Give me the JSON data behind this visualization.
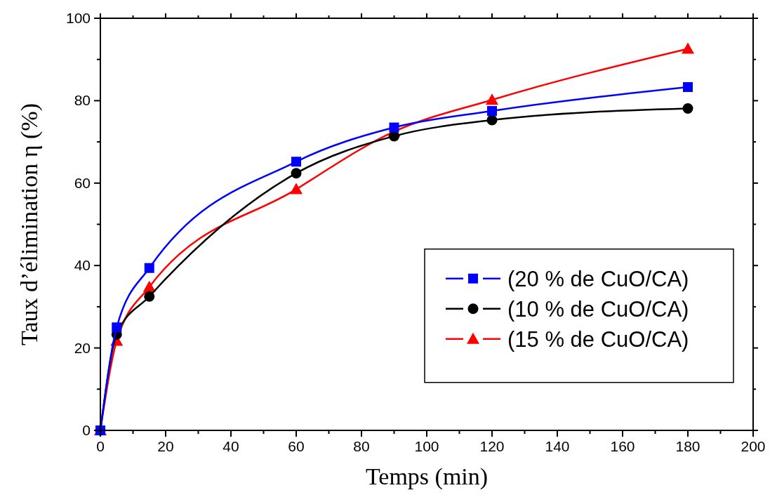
{
  "chart_data": {
    "type": "line",
    "xlabel": "Temps (min)",
    "ylabel": "Taux d’élimination η (%)",
    "x": [
      0,
      5,
      15,
      60,
      90,
      120,
      180
    ],
    "xlim": [
      0,
      200
    ],
    "xticks": [
      0,
      {
        "value": 10,
        "label": null
      },
      20,
      {
        "value": 30,
        "label": null
      },
      40,
      {
        "value": 50,
        "label": null
      },
      60,
      {
        "value": 70,
        "label": null
      },
      80,
      {
        "value": 90,
        "label": null
      },
      100,
      {
        "value": 110,
        "label": null
      },
      120,
      {
        "value": 130,
        "label": null
      },
      140,
      {
        "value": 150,
        "label": null
      },
      160,
      {
        "value": 170,
        "label": null
      },
      180,
      {
        "value": 190,
        "label": null
      },
      200
    ],
    "ylim": [
      0,
      100
    ],
    "yticks": [
      0,
      {
        "value": 10,
        "label": null
      },
      20,
      {
        "value": 30,
        "label": null
      },
      40,
      {
        "value": 50,
        "label": null
      },
      60,
      {
        "value": 70,
        "label": null
      },
      80,
      {
        "value": 90,
        "label": null
      },
      100
    ],
    "grid": false,
    "legend": "right",
    "line_style": "solid",
    "series": [
      {
        "name": "(20 % de CuO/CA)",
        "color": "#0000ff",
        "marker": "square",
        "values": [
          0,
          25,
          39.4,
          65.2,
          73.5,
          77.5,
          83.3
        ]
      },
      {
        "name": "(10 % de CuO/CA)",
        "color": "#000000",
        "marker": "circle",
        "values": [
          0,
          23.3,
          32.5,
          62.4,
          71.4,
          75.3,
          78.1
        ]
      },
      {
        "name": "(15 % de CuO/CA)",
        "color": "#ff0000",
        "marker": "triangle",
        "values": [
          0,
          21.7,
          34.8,
          58.5,
          72.5,
          80.2,
          92.6
        ]
      }
    ]
  }
}
